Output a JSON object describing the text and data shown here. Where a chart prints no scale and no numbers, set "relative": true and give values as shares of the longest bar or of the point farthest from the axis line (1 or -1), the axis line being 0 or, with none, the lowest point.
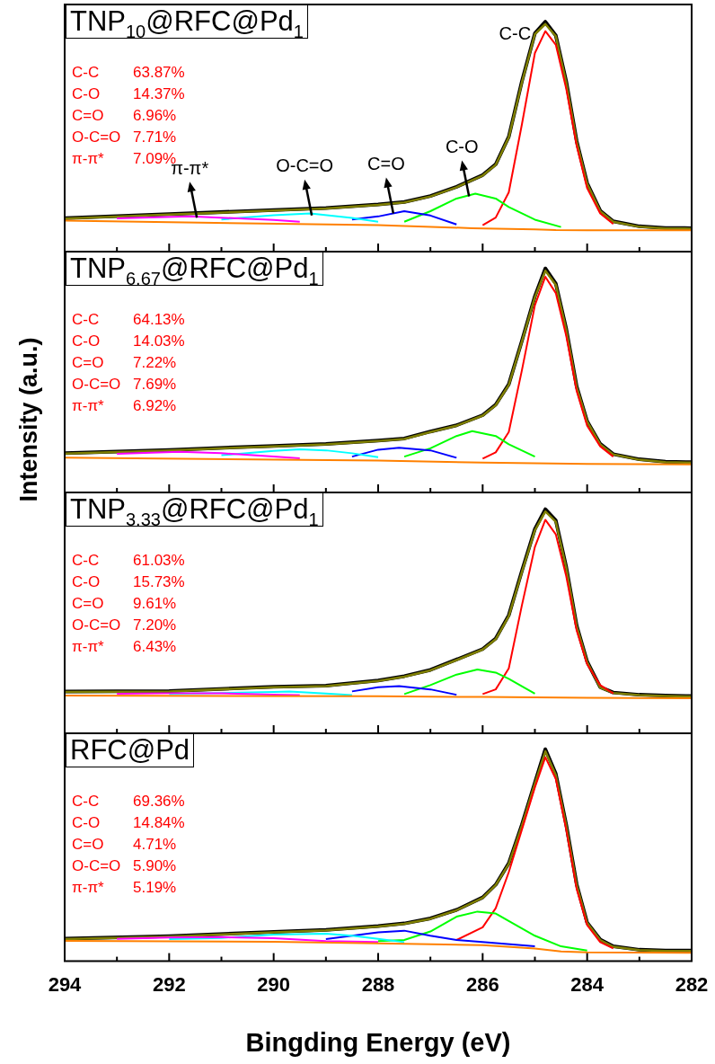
{
  "chart_data": [
    {
      "type": "line",
      "title": "TNP$_{10}$@RFC@Pd$_{1}$",
      "relative": true,
      "tick_labels": false,
      "xlim": [
        294,
        282
      ],
      "xticks": [
        294,
        {
          "value": 293,
          "label": null
        },
        292,
        {
          "value": 291,
          "label": null
        },
        290,
        {
          "value": 289,
          "label": null
        },
        288,
        {
          "value": 287,
          "label": null
        },
        286,
        {
          "value": 285,
          "label": null
        },
        284,
        {
          "value": 283,
          "label": null
        },
        282
      ],
      "series": [
        {
          "color": "#000000",
          "x": [
            294,
            292,
            290,
            289,
            288,
            287.5,
            287,
            286.5,
            286,
            285.75,
            285.5,
            285.25,
            285,
            284.8,
            284.6,
            284.4,
            284.2,
            284,
            283.75,
            283.5,
            283,
            282.5,
            282
          ],
          "values": [
            0.146,
            0.163,
            0.181,
            0.19,
            0.205,
            0.216,
            0.242,
            0.282,
            0.333,
            0.38,
            0.5,
            0.74,
            0.95,
            1,
            0.94,
            0.74,
            0.48,
            0.298,
            0.178,
            0.132,
            0.11,
            0.103,
            0.102
          ]
        },
        {
          "color": "#808000",
          "x": [
            294,
            292,
            290,
            289,
            288,
            287.5,
            287,
            286.5,
            286,
            285.75,
            285.5,
            285.25,
            285,
            284.8,
            284.6,
            284.4,
            284.2,
            284,
            283.75,
            283.5,
            283,
            282.5,
            282
          ],
          "values": [
            0.144,
            0.161,
            0.179,
            0.188,
            0.203,
            0.214,
            0.24,
            0.28,
            0.331,
            0.377,
            0.497,
            0.735,
            0.946,
            0.99,
            0.937,
            0.735,
            0.478,
            0.295,
            0.176,
            0.13,
            0.108,
            0.101,
            0.1
          ]
        },
        {
          "color": "#ff0000",
          "x": [
            286,
            285.75,
            285.5,
            285.25,
            285,
            284.8,
            284.6,
            284.4,
            284.2,
            284,
            283.75,
            283.5
          ],
          "values": [
            0.115,
            0.148,
            0.258,
            0.552,
            0.864,
            0.959,
            0.9,
            0.708,
            0.46,
            0.276,
            0.166,
            0.12
          ]
        },
        {
          "color": "#00ff00",
          "x": [
            287.5,
            287,
            286.5,
            286.14,
            285.75,
            285.5,
            285,
            284.5
          ],
          "values": [
            0.13,
            0.176,
            0.231,
            0.252,
            0.231,
            0.194,
            0.139,
            0.107
          ]
        },
        {
          "color": "#0000ff",
          "x": [
            288.5,
            288,
            287.5,
            287,
            286.5
          ],
          "values": [
            0.14,
            0.153,
            0.176,
            0.157,
            0.118
          ]
        },
        {
          "color": "#00ffff",
          "x": [
            291,
            290,
            289.3,
            288.5,
            288
          ],
          "values": [
            0.14,
            0.158,
            0.166,
            0.147,
            0.13
          ]
        },
        {
          "color": "#ff00ff",
          "x": [
            293,
            291.6,
            290,
            289.5
          ],
          "values": [
            0.145,
            0.153,
            0.138,
            0.13
          ]
        },
        {
          "color": "#ff8000",
          "x": [
            294,
            288,
            286.2,
            285,
            284.6,
            284,
            282
          ],
          "values": [
            0.135,
            0.115,
            0.102,
            0.097,
            0.094,
            0.093,
            0.093
          ]
        }
      ],
      "annotations": [
        "C-C 63.87%",
        "C-O 14.37%",
        "C=O 6.96%",
        "O-C=O 7.71%",
        "π-π* 7.09%",
        {
          "text": "C-C",
          "x": 284.8,
          "y": 1
        },
        {
          "text": "C-O",
          "x": 286.26,
          "y": 0.24
        },
        {
          "text": "C=O",
          "x": 287.71,
          "y": 0.166
        },
        {
          "text": "O-C=O",
          "x": 289.27,
          "y": 0.157
        },
        {
          "text": "π-π*",
          "x": 291.47,
          "y": 0.148
        }
      ]
    },
    {
      "type": "line",
      "title": "TNP$_{6.67}$@RFC@Pd$_{1}$",
      "ylabel": "Intensity (a.u.)",
      "relative": true,
      "tick_labels": false,
      "xlim": [
        294,
        282
      ],
      "xticks": [
        294,
        {
          "value": 293,
          "label": null
        },
        292,
        {
          "value": 291,
          "label": null
        },
        290,
        {
          "value": 289,
          "label": null
        },
        288,
        {
          "value": 287,
          "label": null
        },
        286,
        {
          "value": 285,
          "label": null
        },
        284,
        {
          "value": 283,
          "label": null
        },
        282
      ],
      "series": [
        {
          "color": "#000000",
          "x": [
            294,
            292,
            290,
            289,
            288,
            287.5,
            287,
            286.5,
            286,
            285.75,
            285.5,
            285.25,
            285,
            284.8,
            284.6,
            284.4,
            284.2,
            284,
            283.75,
            283.5,
            283,
            282.5,
            282
          ],
          "values": [
            0.175,
            0.19,
            0.208,
            0.217,
            0.232,
            0.241,
            0.272,
            0.3,
            0.345,
            0.392,
            0.483,
            0.676,
            0.876,
            1,
            0.932,
            0.73,
            0.473,
            0.318,
            0.217,
            0.171,
            0.148,
            0.137,
            0.135
          ]
        },
        {
          "color": "#808000",
          "x": [
            294,
            292,
            290,
            289,
            288,
            287.5,
            287,
            286.5,
            286,
            285.75,
            285.5,
            285.25,
            285,
            284.8,
            284.6,
            284.4,
            284.2,
            284,
            283.75,
            283.5,
            283,
            282.5,
            282
          ],
          "values": [
            0.173,
            0.188,
            0.206,
            0.215,
            0.23,
            0.239,
            0.27,
            0.298,
            0.343,
            0.389,
            0.48,
            0.672,
            0.872,
            0.99,
            0.927,
            0.726,
            0.47,
            0.316,
            0.215,
            0.17,
            0.146,
            0.135,
            0.133
          ]
        },
        {
          "color": "#ff0000",
          "x": [
            286,
            285.75,
            285.5,
            285.25,
            285,
            284.8,
            284.6,
            284.4,
            284.2,
            284,
            283.75,
            283.5
          ],
          "values": [
            0.151,
            0.179,
            0.27,
            0.544,
            0.836,
            0.963,
            0.89,
            0.699,
            0.452,
            0.298,
            0.206,
            0.16
          ]
        },
        {
          "color": "#00ff00",
          "x": [
            287.5,
            287,
            286.5,
            286.2,
            285.75,
            285.5,
            285
          ],
          "values": [
            0.16,
            0.197,
            0.252,
            0.274,
            0.252,
            0.215,
            0.16
          ]
        },
        {
          "color": "#0000ff",
          "x": [
            288.5,
            288,
            287.6,
            287,
            286.5
          ],
          "values": [
            0.16,
            0.191,
            0.2,
            0.188,
            0.155
          ]
        },
        {
          "color": "#00ffff",
          "x": [
            291,
            290,
            289.5,
            289,
            288.5,
            288
          ],
          "values": [
            0.166,
            0.186,
            0.193,
            0.188,
            0.175,
            0.157
          ]
        },
        {
          "color": "#ff00ff",
          "x": [
            293,
            291.8,
            291,
            290,
            289.5
          ],
          "values": [
            0.172,
            0.182,
            0.175,
            0.16,
            0.152
          ]
        },
        {
          "color": "#ff8000",
          "x": [
            294,
            288,
            286,
            284,
            282
          ],
          "values": [
            0.155,
            0.142,
            0.133,
            0.127,
            0.125
          ]
        }
      ],
      "annotations": [
        "C-C 64.13%",
        "C-O 14.03%",
        "C=O 7.22%",
        "O-C=O 7.69%",
        "π-π* 6.92%"
      ]
    },
    {
      "type": "line",
      "title": "TNP$_{3.33}$@RFC@Pd$_{1}$",
      "relative": true,
      "tick_labels": false,
      "xlim": [
        294,
        282
      ],
      "xticks": [
        294,
        {
          "value": 293,
          "label": null
        },
        292,
        {
          "value": 291,
          "label": null
        },
        290,
        {
          "value": 289,
          "label": null
        },
        288,
        {
          "value": 287,
          "label": null
        },
        286,
        {
          "value": 285,
          "label": null
        },
        284,
        {
          "value": 283,
          "label": null
        },
        282
      ],
      "series": [
        {
          "color": "#000000",
          "x": [
            294,
            292,
            290,
            289,
            288,
            287.5,
            287,
            286.5,
            286,
            285.75,
            285.5,
            285.25,
            285,
            284.8,
            284.6,
            284.4,
            284.2,
            284,
            283.75,
            283.5,
            283,
            282.5,
            282
          ],
          "values": [
            0.187,
            0.189,
            0.208,
            0.213,
            0.236,
            0.255,
            0.283,
            0.329,
            0.376,
            0.423,
            0.527,
            0.724,
            0.912,
            1,
            0.95,
            0.742,
            0.48,
            0.32,
            0.206,
            0.182,
            0.172,
            0.168,
            0.166
          ]
        },
        {
          "color": "#808000",
          "x": [
            294,
            292,
            290,
            289,
            288,
            287.5,
            287,
            286.5,
            286,
            285.75,
            285.5,
            285.25,
            285,
            284.8,
            284.6,
            284.4,
            284.2,
            284,
            283.75,
            283.5,
            283,
            282.5,
            282
          ],
          "values": [
            0.185,
            0.187,
            0.206,
            0.211,
            0.234,
            0.253,
            0.281,
            0.327,
            0.374,
            0.42,
            0.523,
            0.719,
            0.906,
            0.99,
            0.944,
            0.738,
            0.477,
            0.318,
            0.204,
            0.18,
            0.17,
            0.166,
            0.164
          ]
        },
        {
          "color": "#ff0000",
          "x": [
            286,
            285.75,
            285.5,
            285.25,
            285,
            284.8,
            284.6,
            284.4,
            284.2,
            284,
            283.75,
            283.5
          ],
          "values": [
            0.175,
            0.196,
            0.29,
            0.57,
            0.832,
            0.953,
            0.888,
            0.701,
            0.458,
            0.308,
            0.215,
            0.178
          ]
        },
        {
          "color": "#00ff00",
          "x": [
            287.5,
            287,
            286.5,
            286.1,
            285.75,
            285.5,
            285
          ],
          "values": [
            0.175,
            0.215,
            0.262,
            0.285,
            0.271,
            0.243,
            0.177
          ]
        },
        {
          "color": "#0000ff",
          "x": [
            288.5,
            288,
            287.6,
            287,
            286.5
          ],
          "values": [
            0.187,
            0.206,
            0.211,
            0.196,
            0.172
          ]
        },
        {
          "color": "#00ffff",
          "x": [
            292,
            291,
            290,
            289.7,
            289,
            288.5
          ],
          "values": [
            0.176,
            0.18,
            0.185,
            0.187,
            0.177,
            0.17
          ]
        },
        {
          "color": "#ff00ff",
          "x": [
            293,
            291.9,
            291,
            290,
            289.5
          ],
          "values": [
            0.176,
            0.179,
            0.178,
            0.172,
            0.17
          ]
        },
        {
          "color": "#ff8000",
          "x": [
            294,
            288,
            286,
            284,
            282
          ],
          "values": [
            0.168,
            0.165,
            0.162,
            0.158,
            0.156
          ]
        }
      ],
      "annotations": [
        "C-C 61.03%",
        "C-O 15.73%",
        "C=O 9.61%",
        "O-C=O 7.20%",
        "π-π* 6.43%"
      ]
    },
    {
      "type": "line",
      "title": "RFC@Pd",
      "xlabel": "Bingding Energy (eV)",
      "relative": true,
      "tick_labels": "x",
      "xlim": [
        294,
        282
      ],
      "xticks": [
        294,
        {
          "value": 293,
          "label": null
        },
        292,
        {
          "value": 291,
          "label": null
        },
        290,
        {
          "value": 289,
          "label": null
        },
        288,
        {
          "value": 287,
          "label": null
        },
        286,
        {
          "value": 285,
          "label": null
        },
        284,
        {
          "value": 283,
          "label": null
        },
        282
      ],
      "series": [
        {
          "color": "#000000",
          "x": [
            294,
            292,
            290,
            289,
            288,
            287.5,
            287,
            286.5,
            286,
            285.75,
            285.5,
            285.25,
            285,
            284.8,
            284.6,
            284.4,
            284.2,
            284,
            283.75,
            283.5,
            283,
            282.5,
            282
          ],
          "values": [
            0.106,
            0.118,
            0.138,
            0.148,
            0.166,
            0.178,
            0.202,
            0.242,
            0.301,
            0.361,
            0.462,
            0.643,
            0.843,
            1,
            0.884,
            0.643,
            0.362,
            0.182,
            0.102,
            0.07,
            0.054,
            0.05,
            0.05
          ]
        },
        {
          "color": "#808000",
          "x": [
            294,
            292,
            290,
            289,
            288,
            287.5,
            287,
            286.5,
            286,
            285.75,
            285.5,
            285.25,
            285,
            284.8,
            284.6,
            284.4,
            284.2,
            284,
            283.75,
            283.5,
            283,
            282.5,
            282
          ],
          "values": [
            0.104,
            0.116,
            0.136,
            0.146,
            0.164,
            0.176,
            0.2,
            0.24,
            0.299,
            0.359,
            0.459,
            0.639,
            0.838,
            0.99,
            0.878,
            0.639,
            0.359,
            0.18,
            0.1,
            0.068,
            0.052,
            0.048,
            0.048
          ]
        },
        {
          "color": "#ff0000",
          "x": [
            286.5,
            286,
            285.75,
            285.5,
            285.25,
            285,
            284.8,
            284.6,
            284.4,
            284.2,
            284,
            283.75,
            283.5
          ],
          "values": [
            0.1,
            0.16,
            0.25,
            0.42,
            0.62,
            0.82,
            0.962,
            0.86,
            0.62,
            0.34,
            0.17,
            0.09,
            0.06
          ]
        },
        {
          "color": "#00ff00",
          "x": [
            288,
            287.5,
            287,
            286.5,
            286.1,
            285.75,
            285.5,
            285,
            284.5,
            284
          ],
          "values": [
            0.095,
            0.1,
            0.14,
            0.21,
            0.234,
            0.225,
            0.19,
            0.12,
            0.07,
            0.05
          ]
        },
        {
          "color": "#0000ff",
          "x": [
            289,
            288.5,
            288,
            287.5,
            287,
            286.5,
            286,
            285
          ],
          "values": [
            0.104,
            0.12,
            0.136,
            0.144,
            0.12,
            0.1,
            0.09,
            0.07
          ]
        },
        {
          "color": "#00ffff",
          "x": [
            292,
            291,
            290,
            289,
            288.5,
            288,
            287.5
          ],
          "values": [
            0.104,
            0.11,
            0.125,
            0.13,
            0.12,
            0.105,
            0.09
          ]
        },
        {
          "color": "#ff00ff",
          "x": [
            293,
            292,
            291,
            290,
            289,
            288
          ],
          "values": [
            0.105,
            0.112,
            0.114,
            0.108,
            0.095,
            0.09
          ]
        },
        {
          "color": "#ff8000",
          "x": [
            294,
            290,
            288,
            286,
            285,
            284.5,
            284,
            282
          ],
          "values": [
            0.096,
            0.092,
            0.084,
            0.076,
            0.06,
            0.046,
            0.042,
            0.04
          ]
        }
      ],
      "annotations": [
        "C-C 69.36%",
        "C-O 14.84%",
        "C=O 4.71%",
        "O-C=O 5.90%",
        "π-π* 5.19%"
      ]
    }
  ]
}
